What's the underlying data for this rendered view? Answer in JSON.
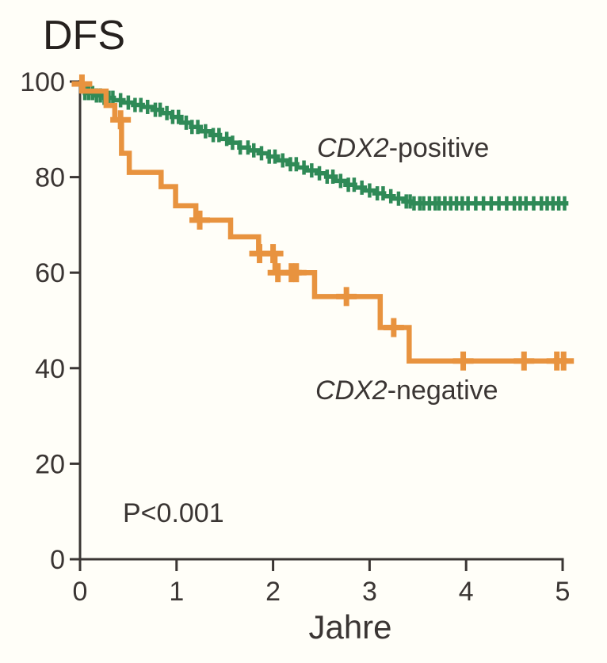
{
  "chart": {
    "title": "DFS",
    "xlabel": "Jahre",
    "pvalue_annotation": "P<0.001",
    "background_color": "#fffef8",
    "axis_color": "#3a3533",
    "text_color": "#3a3533"
  },
  "chart_data": {
    "type": "line",
    "subtype": "kaplan_meier_step",
    "title": "DFS",
    "xlabel": "Jahre",
    "ylabel": "",
    "xlim": [
      0,
      5
    ],
    "ylim": [
      0,
      100
    ],
    "xticks": [
      0,
      1,
      2,
      3,
      4,
      5
    ],
    "yticks": [
      0,
      20,
      40,
      60,
      80,
      100
    ],
    "grid": false,
    "legend_position": "inline-labels",
    "annotation": "P<0.001",
    "series": [
      {
        "name": "CDX2-positive",
        "label_italic": "CDX2",
        "label_rest": "-positive",
        "color": "#2f8a57",
        "censor_style": "vertical-tick",
        "step_points": [
          [
            0,
            99
          ],
          [
            0.05,
            97.6
          ],
          [
            0.15,
            97.1
          ],
          [
            0.25,
            96.6
          ],
          [
            0.35,
            96.1
          ],
          [
            0.45,
            95.6
          ],
          [
            0.55,
            95.1
          ],
          [
            0.65,
            94.7
          ],
          [
            0.75,
            94.1
          ],
          [
            0.85,
            93.4
          ],
          [
            0.95,
            92.6
          ],
          [
            1.05,
            91.4
          ],
          [
            1.15,
            90.5
          ],
          [
            1.25,
            89.6
          ],
          [
            1.35,
            88.8
          ],
          [
            1.45,
            88
          ],
          [
            1.55,
            87.2
          ],
          [
            1.65,
            86.2
          ],
          [
            1.75,
            85.6
          ],
          [
            1.85,
            85
          ],
          [
            1.95,
            84.3
          ],
          [
            2.05,
            83.5
          ],
          [
            2.15,
            82.7
          ],
          [
            2.25,
            82
          ],
          [
            2.35,
            81.4
          ],
          [
            2.45,
            80.8
          ],
          [
            2.55,
            80.1
          ],
          [
            2.65,
            79.2
          ],
          [
            2.75,
            78.4
          ],
          [
            2.85,
            77.8
          ],
          [
            2.95,
            77.2
          ],
          [
            3.05,
            76.6
          ],
          [
            3.15,
            76
          ],
          [
            3.25,
            75.5
          ],
          [
            3.35,
            74.9
          ],
          [
            3.45,
            74.5
          ],
          [
            5.06,
            74.5
          ]
        ],
        "censor_times": [
          0.05,
          0.09,
          0.13,
          0.17,
          0.21,
          0.25,
          0.3,
          0.34,
          0.42,
          0.5,
          0.57,
          0.63,
          0.7,
          0.78,
          0.83,
          0.9,
          0.96,
          1.02,
          1.1,
          1.16,
          1.22,
          1.3,
          1.38,
          1.44,
          1.52,
          1.58,
          1.66,
          1.74,
          1.8,
          1.88,
          1.96,
          2.02,
          2.1,
          2.18,
          2.24,
          2.32,
          2.4,
          2.48,
          2.56,
          2.62,
          2.7,
          2.78,
          2.84,
          2.92,
          3.0,
          3.08,
          3.14,
          3.22,
          3.3,
          3.38,
          3.42,
          3.46,
          3.52,
          3.56,
          3.62,
          3.68,
          3.72,
          3.78,
          3.84,
          3.9,
          3.96,
          4.02,
          4.1,
          4.18,
          4.26,
          4.34,
          4.42,
          4.5,
          4.56,
          4.62,
          4.7,
          4.78,
          4.84,
          4.9,
          4.96,
          5.02
        ]
      },
      {
        "name": "CDX2-negative",
        "label_italic": "CDX2",
        "label_rest": "-negative",
        "color": "#e8933f",
        "censor_style": "plus",
        "step_points": [
          [
            0,
            99.5
          ],
          [
            0.03,
            98
          ],
          [
            0.27,
            95
          ],
          [
            0.36,
            92
          ],
          [
            0.43,
            85
          ],
          [
            0.51,
            81
          ],
          [
            0.84,
            78
          ],
          [
            0.99,
            74
          ],
          [
            1.2,
            71
          ],
          [
            1.56,
            67.5
          ],
          [
            1.85,
            64
          ],
          [
            2.02,
            60
          ],
          [
            2.43,
            55
          ],
          [
            3.11,
            48.5
          ],
          [
            3.41,
            41.5
          ],
          [
            5.05,
            41.5
          ]
        ],
        "censor_times": [
          0.02,
          0.42,
          1.24,
          1.86,
          2.0,
          2.05,
          2.19,
          2.24,
          2.76,
          3.25,
          3.97,
          4.6,
          4.94,
          5.01
        ]
      }
    ]
  }
}
